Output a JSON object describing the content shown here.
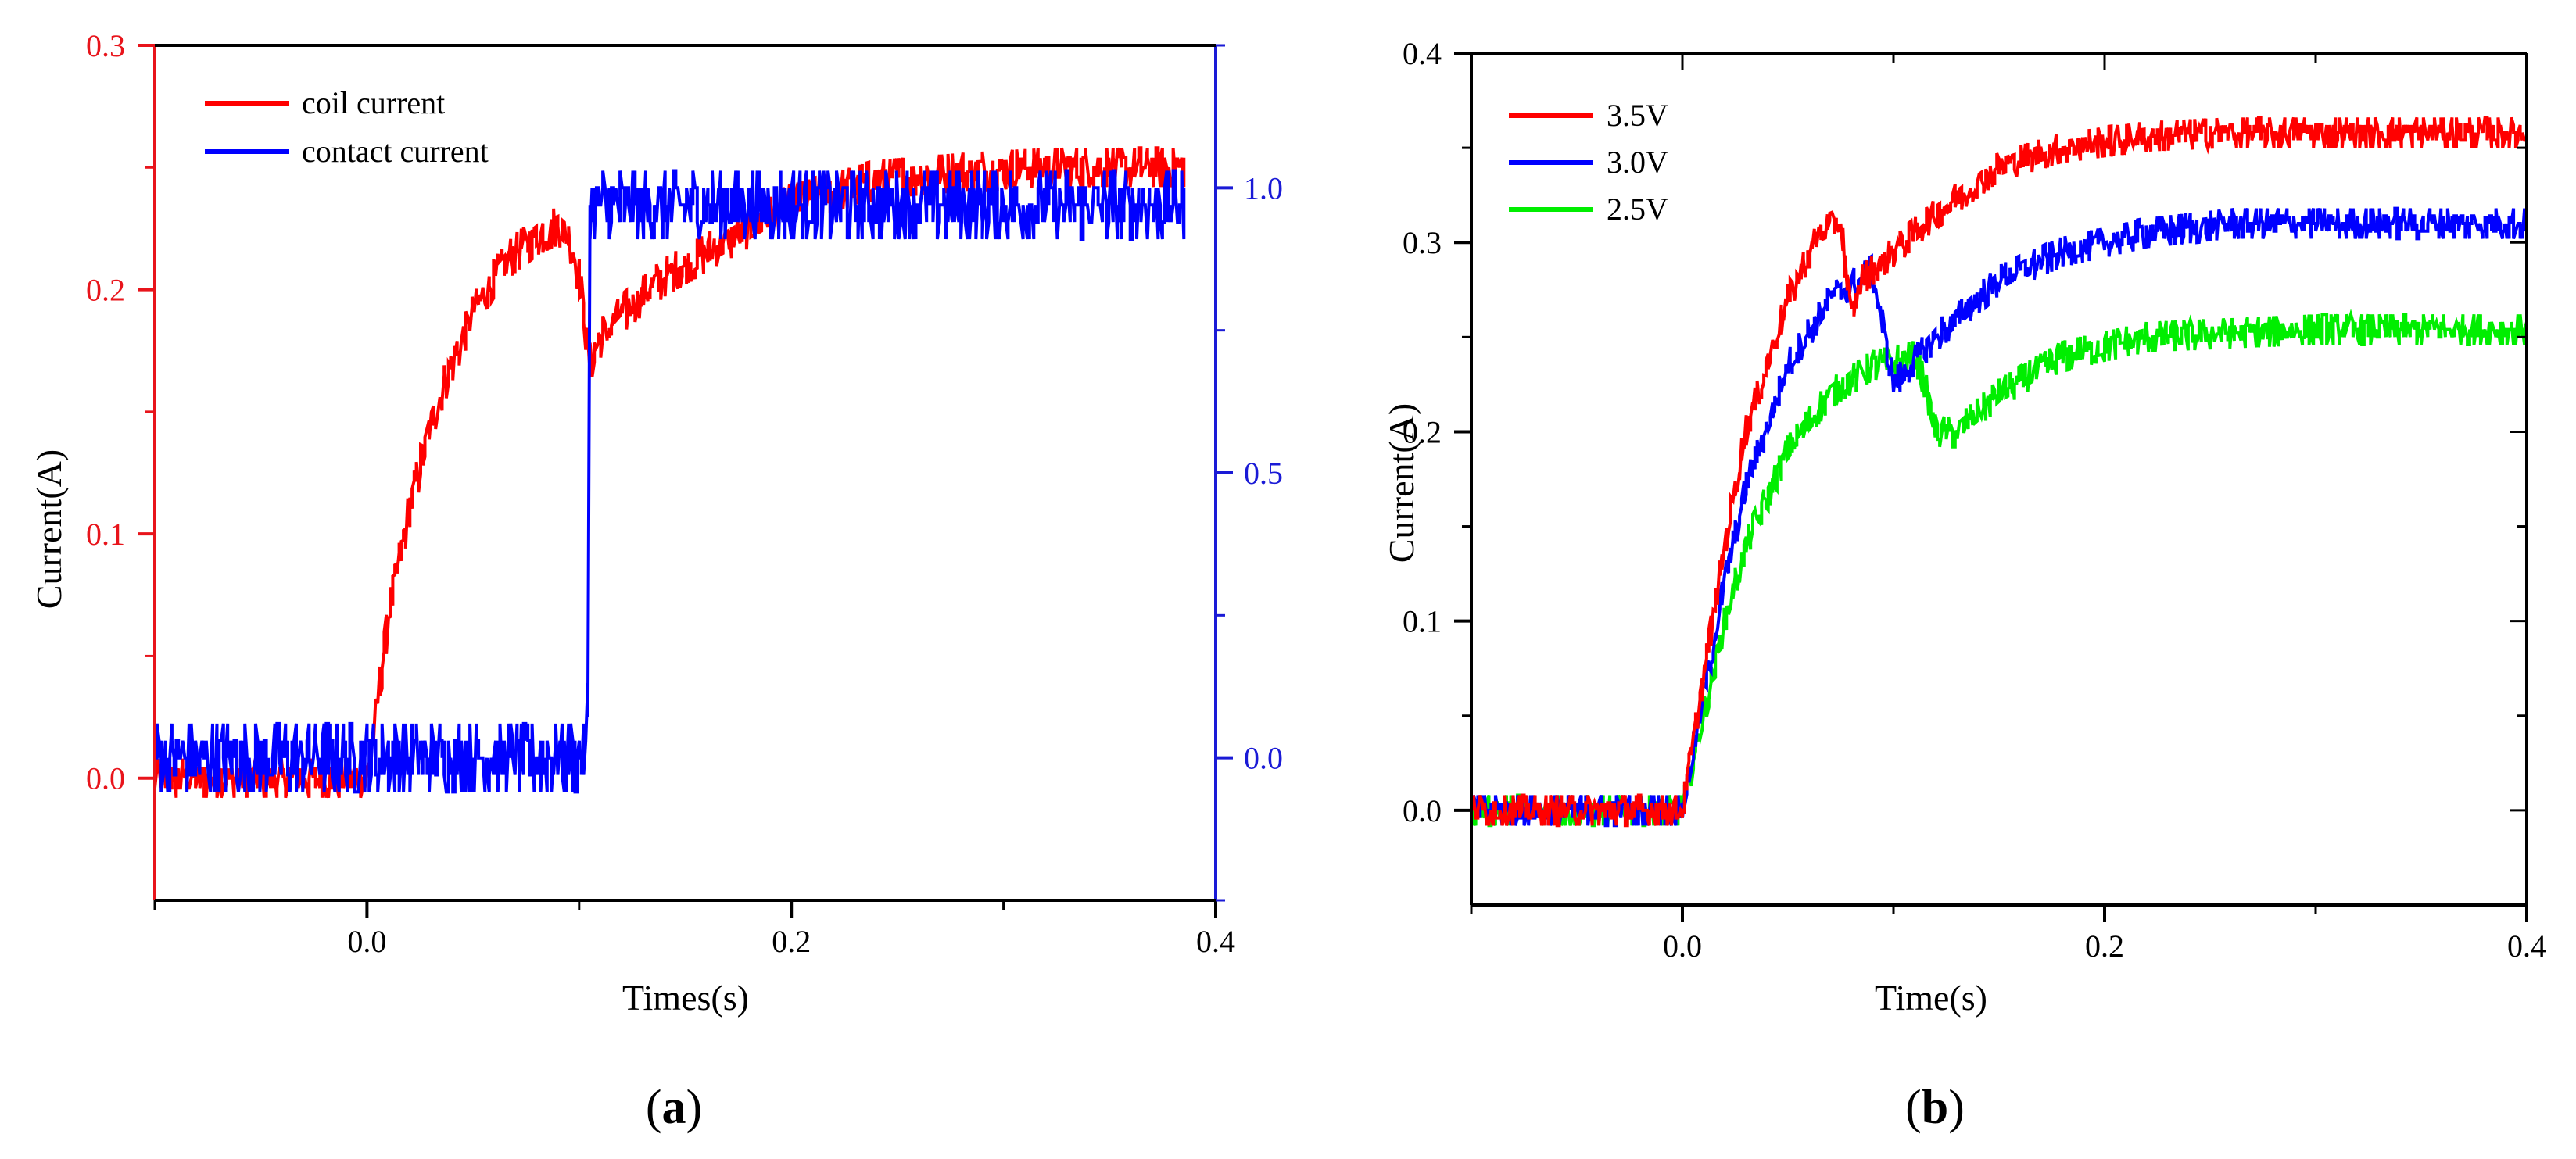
{
  "panels": [
    {
      "id": "a",
      "caption": "(a)",
      "caption_letter": "a"
    },
    {
      "id": "b",
      "caption": "(b)",
      "caption_letter": "b"
    }
  ],
  "chart_data": [
    {
      "type": "line",
      "panel": "a",
      "xlabel": "Times(s)",
      "ylabel": "Current(A)",
      "y2label": "",
      "xlim": [
        -0.1,
        0.4
      ],
      "ylim": [
        -0.05,
        0.3
      ],
      "y2lim": [
        -0.25,
        1.25
      ],
      "xticks": [
        0.0,
        0.2,
        0.4
      ],
      "xtick_labels": [
        "0.0",
        "0.2",
        "0.4"
      ],
      "yticks": [
        0.0,
        0.1,
        0.2,
        0.3
      ],
      "ytick_labels": [
        "0.0",
        "0.1",
        "0.2",
        "0.3"
      ],
      "y2ticks": [
        0.0,
        0.5,
        1.0
      ],
      "y2tick_labels": [
        "0.0",
        "0.5",
        "1.0"
      ],
      "grid": false,
      "legend": "top-left",
      "axis_colors": {
        "left": "#e8141b",
        "right": "#1a1ad6"
      },
      "series": [
        {
          "name": "coil current",
          "color": "#ff0000",
          "axis": "left",
          "noise": 0.008,
          "x": [
            -0.1,
            0.0,
            0.005,
            0.01,
            0.02,
            0.03,
            0.04,
            0.05,
            0.06,
            0.07,
            0.08,
            0.09,
            0.095,
            0.1,
            0.105,
            0.11,
            0.12,
            0.14,
            0.16,
            0.18,
            0.2,
            0.24,
            0.28,
            0.32,
            0.36,
            0.385
          ],
          "y": [
            0.0,
            0.0,
            0.03,
            0.065,
            0.11,
            0.145,
            0.17,
            0.19,
            0.205,
            0.215,
            0.222,
            0.226,
            0.222,
            0.205,
            0.17,
            0.18,
            0.19,
            0.205,
            0.215,
            0.225,
            0.235,
            0.245,
            0.248,
            0.25,
            0.25,
            0.25
          ]
        },
        {
          "name": "contact current",
          "color": "#0000ff",
          "axis": "right",
          "noise": 0.06,
          "x": [
            -0.1,
            0.104,
            0.105,
            0.385
          ],
          "y": [
            0.0,
            0.0,
            0.97,
            0.97
          ]
        }
      ]
    },
    {
      "type": "line",
      "panel": "b",
      "xlabel": "Time(s)",
      "ylabel": "Current(A)",
      "xlim": [
        -0.1,
        0.4
      ],
      "ylim": [
        -0.05,
        0.4
      ],
      "xticks": [
        0.0,
        0.2,
        0.4
      ],
      "xtick_labels": [
        "0.0",
        "0.2",
        "0.4"
      ],
      "yticks": [
        0.0,
        0.1,
        0.2,
        0.3,
        0.4
      ],
      "ytick_labels": [
        "0.0",
        "0.1",
        "0.2",
        "0.3",
        "0.4"
      ],
      "grid": false,
      "legend": "top-left",
      "series": [
        {
          "name": "2.5V",
          "color": "#00ee00",
          "noise": 0.008,
          "x": [
            -0.1,
            0.0,
            0.01,
            0.02,
            0.03,
            0.05,
            0.07,
            0.09,
            0.11,
            0.115,
            0.12,
            0.13,
            0.15,
            0.18,
            0.22,
            0.26,
            0.3,
            0.35,
            0.4
          ],
          "y": [
            0.0,
            0.0,
            0.05,
            0.1,
            0.14,
            0.19,
            0.22,
            0.235,
            0.24,
            0.225,
            0.2,
            0.2,
            0.22,
            0.24,
            0.25,
            0.252,
            0.254,
            0.254,
            0.254
          ]
        },
        {
          "name": "3.0V",
          "color": "#0000ff",
          "noise": 0.008,
          "x": [
            -0.1,
            0.0,
            0.01,
            0.02,
            0.03,
            0.05,
            0.07,
            0.09,
            0.095,
            0.1,
            0.12,
            0.15,
            0.18,
            0.22,
            0.26,
            0.3,
            0.35,
            0.4
          ],
          "y": [
            0.0,
            0.0,
            0.06,
            0.12,
            0.17,
            0.235,
            0.27,
            0.285,
            0.255,
            0.225,
            0.25,
            0.28,
            0.295,
            0.305,
            0.31,
            0.31,
            0.31,
            0.31
          ]
        },
        {
          "name": "3.5V",
          "color": "#ff0000",
          "noise": 0.008,
          "x": [
            -0.1,
            0.0,
            0.01,
            0.02,
            0.03,
            0.05,
            0.065,
            0.075,
            0.08,
            0.085,
            0.1,
            0.12,
            0.15,
            0.18,
            0.22,
            0.26,
            0.3,
            0.35,
            0.4
          ],
          "y": [
            0.0,
            0.0,
            0.07,
            0.14,
            0.2,
            0.27,
            0.305,
            0.31,
            0.26,
            0.28,
            0.295,
            0.315,
            0.34,
            0.35,
            0.356,
            0.358,
            0.358,
            0.358,
            0.358
          ]
        }
      ],
      "legend_order": [
        "3.5V",
        "3.0V",
        "2.5V"
      ]
    }
  ]
}
